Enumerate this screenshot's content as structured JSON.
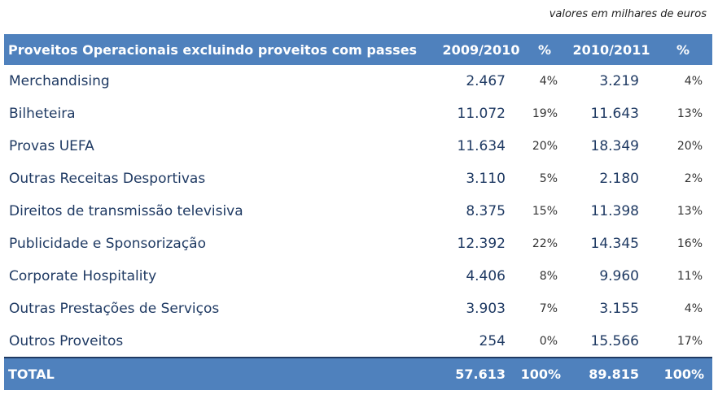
{
  "unit_note": "valores em milhares de euros",
  "header": {
    "label": "Proveitos Operacionais excluindo proveitos com passes",
    "year1": "2009/2010",
    "pct1": "%",
    "year2": "2010/2011",
    "pct2": "%"
  },
  "rows": [
    {
      "label": "Merchandising",
      "v1": "2.467",
      "p1": "4%",
      "v2": "3.219",
      "p2": "4%"
    },
    {
      "label": "Bilheteira",
      "v1": "11.072",
      "p1": "19%",
      "v2": "11.643",
      "p2": "13%"
    },
    {
      "label": "Provas UEFA",
      "v1": "11.634",
      "p1": "20%",
      "v2": "18.349",
      "p2": "20%"
    },
    {
      "label": "Outras Receitas Desportivas",
      "v1": "3.110",
      "p1": "5%",
      "v2": "2.180",
      "p2": "2%"
    },
    {
      "label": "Direitos de transmissão televisiva",
      "v1": "8.375",
      "p1": "15%",
      "v2": "11.398",
      "p2": "13%"
    },
    {
      "label": "Publicidade e Sponsorização",
      "v1": "12.392",
      "p1": "22%",
      "v2": "14.345",
      "p2": "16%"
    },
    {
      "label": "Corporate Hospitality",
      "v1": "4.406",
      "p1": "8%",
      "v2": "9.960",
      "p2": "11%"
    },
    {
      "label": "Outras Prestações de Serviços",
      "v1": "3.903",
      "p1": "7%",
      "v2": "3.155",
      "p2": "4%"
    },
    {
      "label": "Outros Proveitos",
      "v1": "254",
      "p1": "0%",
      "v2": "15.566",
      "p2": "17%"
    }
  ],
  "total": {
    "label": "TOTAL",
    "v1": "57.613",
    "p1": "100%",
    "v2": "89.815",
    "p2": "100%"
  }
}
